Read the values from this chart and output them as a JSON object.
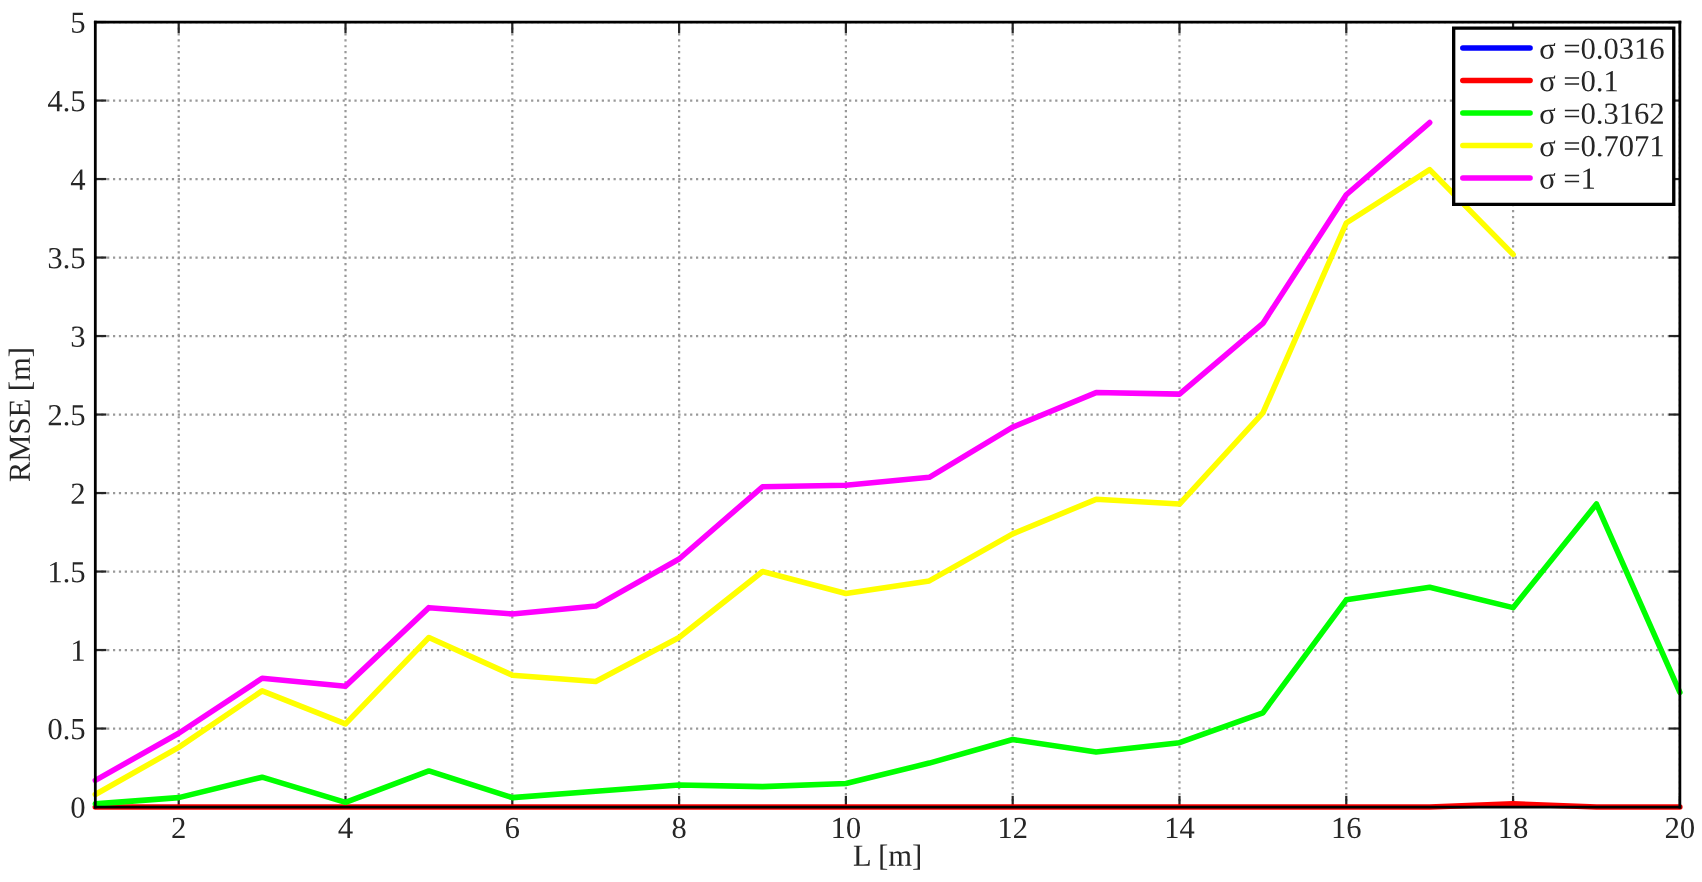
{
  "chart_data": {
    "type": "line",
    "xlabel": "L [m]",
    "ylabel": "RMSE [m]",
    "x": [
      1,
      2,
      3,
      4,
      5,
      6,
      7,
      8,
      9,
      10,
      11,
      12,
      13,
      14,
      15,
      16,
      17,
      18,
      19,
      20
    ],
    "xlim": [
      1,
      20
    ],
    "xticks": [
      2,
      4,
      6,
      8,
      10,
      12,
      14,
      16,
      18,
      20
    ],
    "ylim": [
      0,
      5
    ],
    "yticks": [
      0,
      0.5,
      1,
      1.5,
      2,
      2.5,
      3,
      3.5,
      4,
      4.5,
      5
    ],
    "grid": true,
    "legend": "top right",
    "line_style": "solid",
    "series": [
      {
        "name": "σ =0.0316",
        "color": "#0000ff",
        "values": [
          null,
          null,
          null,
          null,
          null,
          null,
          null,
          null,
          null,
          null,
          null,
          null,
          null,
          null,
          null,
          null,
          null,
          null,
          null,
          null
        ]
      },
      {
        "name": "σ =0.1",
        "color": "#ff0000",
        "values": [
          0,
          0,
          0,
          0,
          0,
          0,
          0,
          0,
          0,
          0,
          0,
          0,
          0,
          0,
          0,
          0,
          0,
          0.02,
          0,
          0
        ]
      },
      {
        "name": "σ =0.3162",
        "color": "#00ff00",
        "values": [
          0.02,
          0.06,
          0.19,
          0.03,
          0.23,
          0.06,
          0.1,
          0.14,
          0.13,
          0.15,
          0.28,
          0.43,
          0.35,
          0.41,
          0.6,
          1.32,
          1.4,
          1.27,
          1.93,
          0.73
        ]
      },
      {
        "name": "σ =0.7071",
        "color": "#ffff00",
        "values": [
          0.08,
          0.38,
          0.74,
          0.53,
          1.08,
          0.84,
          0.8,
          1.08,
          1.5,
          1.36,
          1.44,
          1.74,
          1.96,
          1.93,
          2.51,
          3.72,
          4.06,
          3.52,
          null,
          null
        ]
      },
      {
        "name": "σ =1",
        "color": "#ff00ff",
        "values": [
          0.17,
          0.47,
          0.82,
          0.77,
          1.27,
          1.23,
          1.28,
          1.58,
          2.04,
          2.05,
          2.1,
          2.42,
          2.64,
          2.63,
          3.08,
          3.9,
          4.36,
          null,
          null,
          null
        ]
      }
    ]
  }
}
